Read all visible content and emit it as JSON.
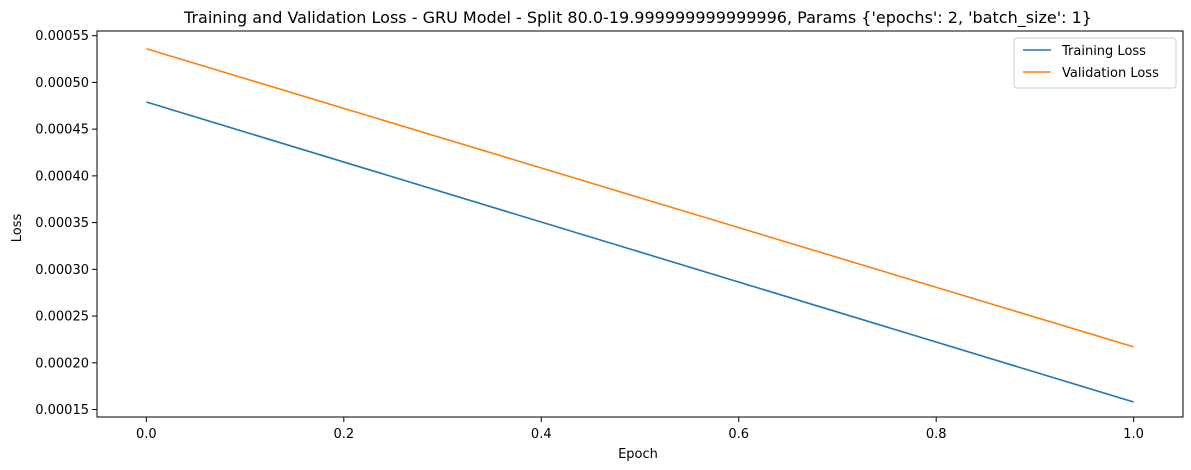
{
  "chart_data": {
    "type": "line",
    "title": "Training and Validation Loss - GRU Model - Split 80.0-19.999999999999996, Params {'epochs': 2, 'batch_size': 1}",
    "xlabel": "Epoch",
    "ylabel": "Loss",
    "x": [
      0.0,
      1.0
    ],
    "xlim": [
      -0.05,
      1.05
    ],
    "ylim": [
      0.000142,
      0.000555
    ],
    "xticks": [
      0.0,
      0.2,
      0.4,
      0.6,
      0.8,
      1.0
    ],
    "xtick_labels": [
      "0.0",
      "0.2",
      "0.4",
      "0.6",
      "0.8",
      "1.0"
    ],
    "yticks": [
      0.00015,
      0.0002,
      0.00025,
      0.0003,
      0.00035,
      0.0004,
      0.00045,
      0.0005,
      0.00055
    ],
    "ytick_labels": [
      "0.00015",
      "0.00020",
      "0.00025",
      "0.00030",
      "0.00035",
      "0.00040",
      "0.00045",
      "0.00050",
      "0.00055"
    ],
    "grid": false,
    "legend_position": "top-right",
    "series": [
      {
        "name": "Training Loss",
        "color": "#1f77b4",
        "values": [
          0.000479,
          0.000158
        ]
      },
      {
        "name": "Validation Loss",
        "color": "#ff7f0e",
        "values": [
          0.000536,
          0.000217
        ]
      }
    ]
  }
}
